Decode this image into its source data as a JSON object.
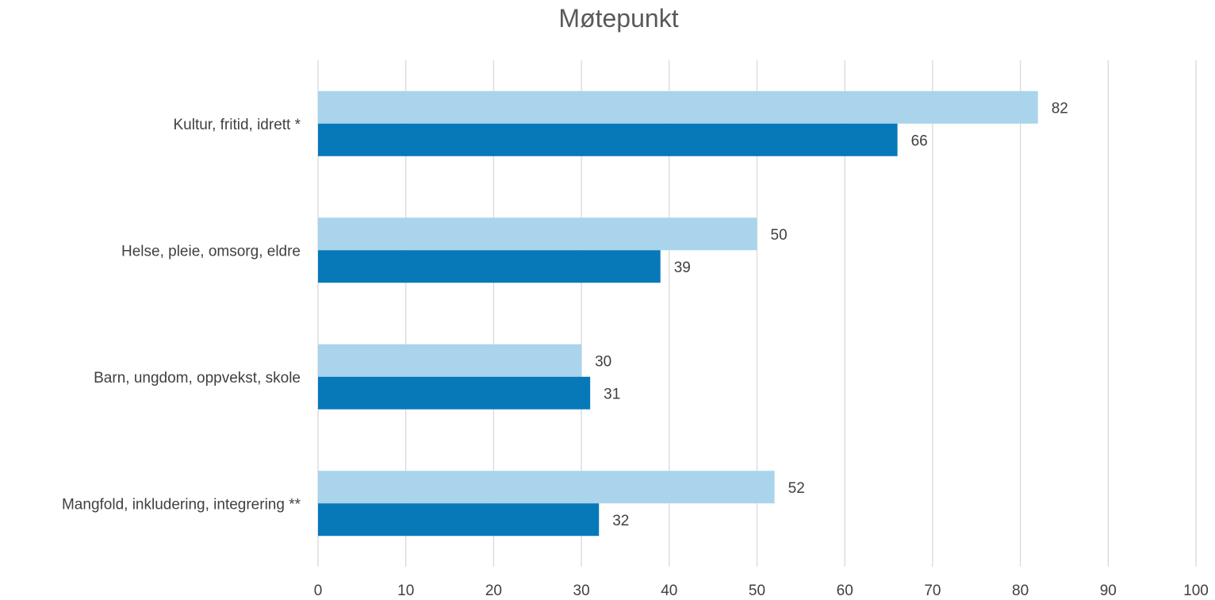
{
  "chart_data": {
    "type": "bar",
    "orientation": "horizontal",
    "title": "Møtepunkt",
    "xlabel": "",
    "ylabel": "",
    "categories": [
      "Kultur, fritid, idrett *",
      "Helse, pleie, omsorg, eldre",
      "Barn, ungdom, oppvekst, skole",
      "Mangfold, inkludering, integrering **"
    ],
    "series": [
      {
        "values": [
          82,
          50,
          30,
          52
        ],
        "color": "#a9d4ec"
      },
      {
        "values": [
          66,
          39,
          31,
          32
        ],
        "color": "#0778b8"
      }
    ],
    "xlim": [
      0,
      100
    ],
    "x_ticks": [
      0,
      10,
      20,
      30,
      40,
      50,
      60,
      70,
      80,
      90,
      100
    ],
    "grid": true,
    "legend": "none",
    "data_labels": true
  }
}
